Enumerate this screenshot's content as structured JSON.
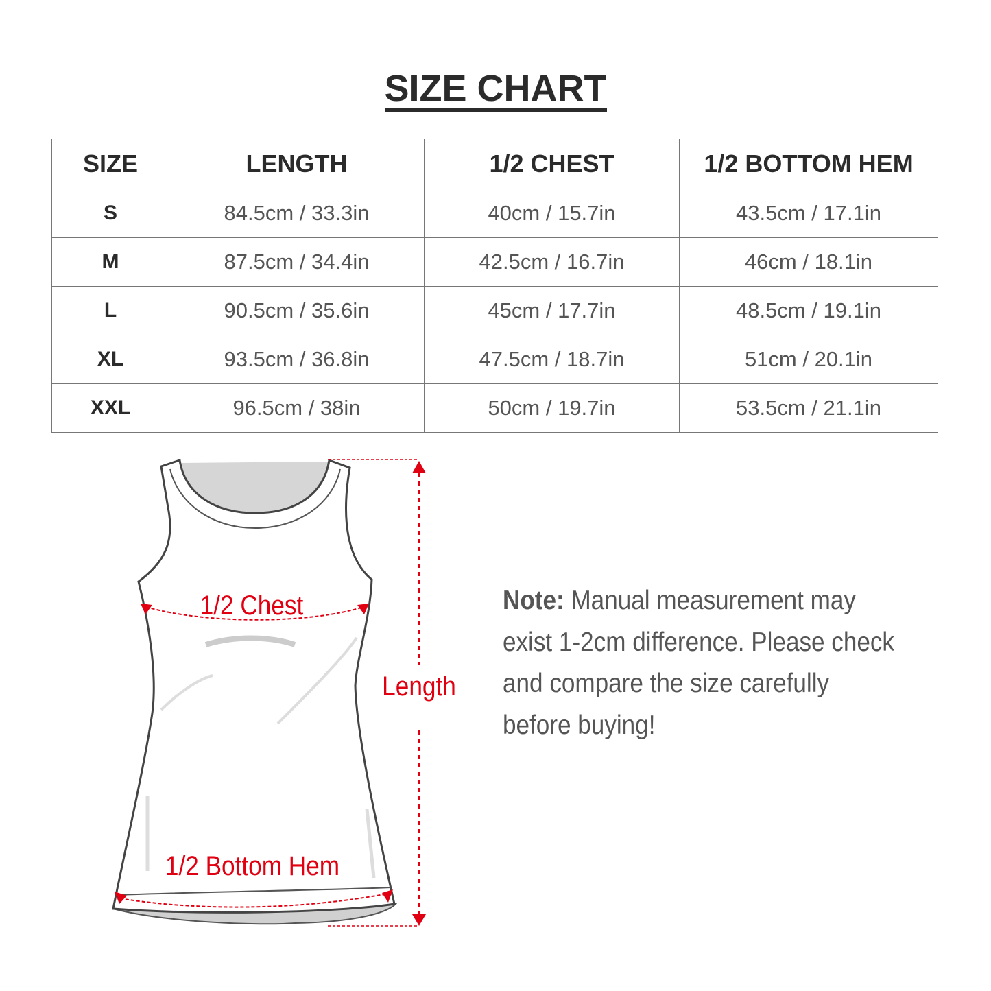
{
  "title": "SIZE CHART",
  "table": {
    "headers": [
      "SIZE",
      "LENGTH",
      "1/2 CHEST",
      "1/2 BOTTOM HEM"
    ],
    "rows": [
      [
        "S",
        "84.5cm / 33.3in",
        "40cm / 15.7in",
        "43.5cm / 17.1in"
      ],
      [
        "M",
        "87.5cm / 34.4in",
        "42.5cm / 16.7in",
        "46cm / 18.1in"
      ],
      [
        "L",
        "90.5cm / 35.6in",
        "45cm / 17.7in",
        "48.5cm / 19.1in"
      ],
      [
        "XL",
        "93.5cm / 36.8in",
        "47.5cm / 18.7in",
        "51cm / 20.1in"
      ],
      [
        "XXL",
        "96.5cm / 38in",
        "50cm / 19.7in",
        "53.5cm / 21.1in"
      ]
    ]
  },
  "diagram": {
    "chest_label": "1/2 Chest",
    "length_label": "Length",
    "hem_label": "1/2 Bottom Hem",
    "accent_color": "#e00012"
  },
  "note": {
    "label": "Note:",
    "text": " Manual measurement may exist 1-2cm difference. Please check and compare the size carefully before buying!"
  }
}
